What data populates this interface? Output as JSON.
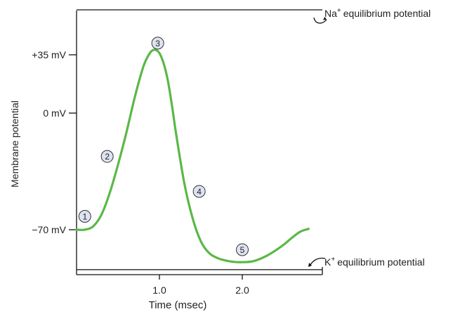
{
  "chart_data": {
    "type": "line",
    "xlabel": "Time (msec)",
    "ylabel": "Membrane potential",
    "x_ticks": [
      {
        "value": 1.0,
        "label": "1.0"
      },
      {
        "value": 2.0,
        "label": "2.0"
      }
    ],
    "y_ticks": [
      {
        "value": 35,
        "label": "+35 mV"
      },
      {
        "value": 0,
        "label": "0 mV"
      },
      {
        "value": -70,
        "label": "−70 mV"
      }
    ],
    "xlim": [
      0,
      3.0
    ],
    "ylim": [
      -98,
      68
    ],
    "grid": false,
    "series": [
      {
        "color": "#5ab847",
        "x": [
          0.0,
          0.1,
          0.2,
          0.3,
          0.4,
          0.5,
          0.6,
          0.7,
          0.8,
          0.85,
          0.9,
          0.95,
          1.0,
          1.05,
          1.1,
          1.15,
          1.2,
          1.3,
          1.4,
          1.5,
          1.6,
          1.7,
          1.8,
          1.9,
          2.0,
          2.1,
          2.2,
          2.3,
          2.4,
          2.5,
          2.6,
          2.7,
          2.8
        ],
        "y": [
          -70,
          -70,
          -68,
          -61,
          -48,
          -31,
          -12,
          9,
          27,
          33,
          37,
          38,
          36,
          30,
          20,
          5,
          -12,
          -42,
          -63,
          -77,
          -84,
          -87,
          -88.5,
          -89.3,
          -89.5,
          -89.2,
          -87.8,
          -85.5,
          -82.5,
          -79,
          -74.8,
          -71.2,
          -69.5
        ]
      }
    ],
    "reference_lines": [
      {
        "value": 62,
        "label": "Na",
        "sup": "+",
        "suffix": "equilibrium potential"
      },
      {
        "value": -94,
        "label": "K",
        "sup": "+",
        "suffix": "equilibrium potential"
      }
    ],
    "annotations": [
      {
        "label": "1",
        "x": 0.1,
        "y": -62
      },
      {
        "label": "2",
        "x": 0.37,
        "y": -26
      },
      {
        "label": "3",
        "x": 0.98,
        "y": 42
      },
      {
        "label": "4",
        "x": 1.48,
        "y": -47
      },
      {
        "label": "5",
        "x": 2.0,
        "y": -82
      }
    ],
    "colors": {
      "curve": "#5ab847",
      "axis": "#111111",
      "text": "#222222"
    }
  }
}
